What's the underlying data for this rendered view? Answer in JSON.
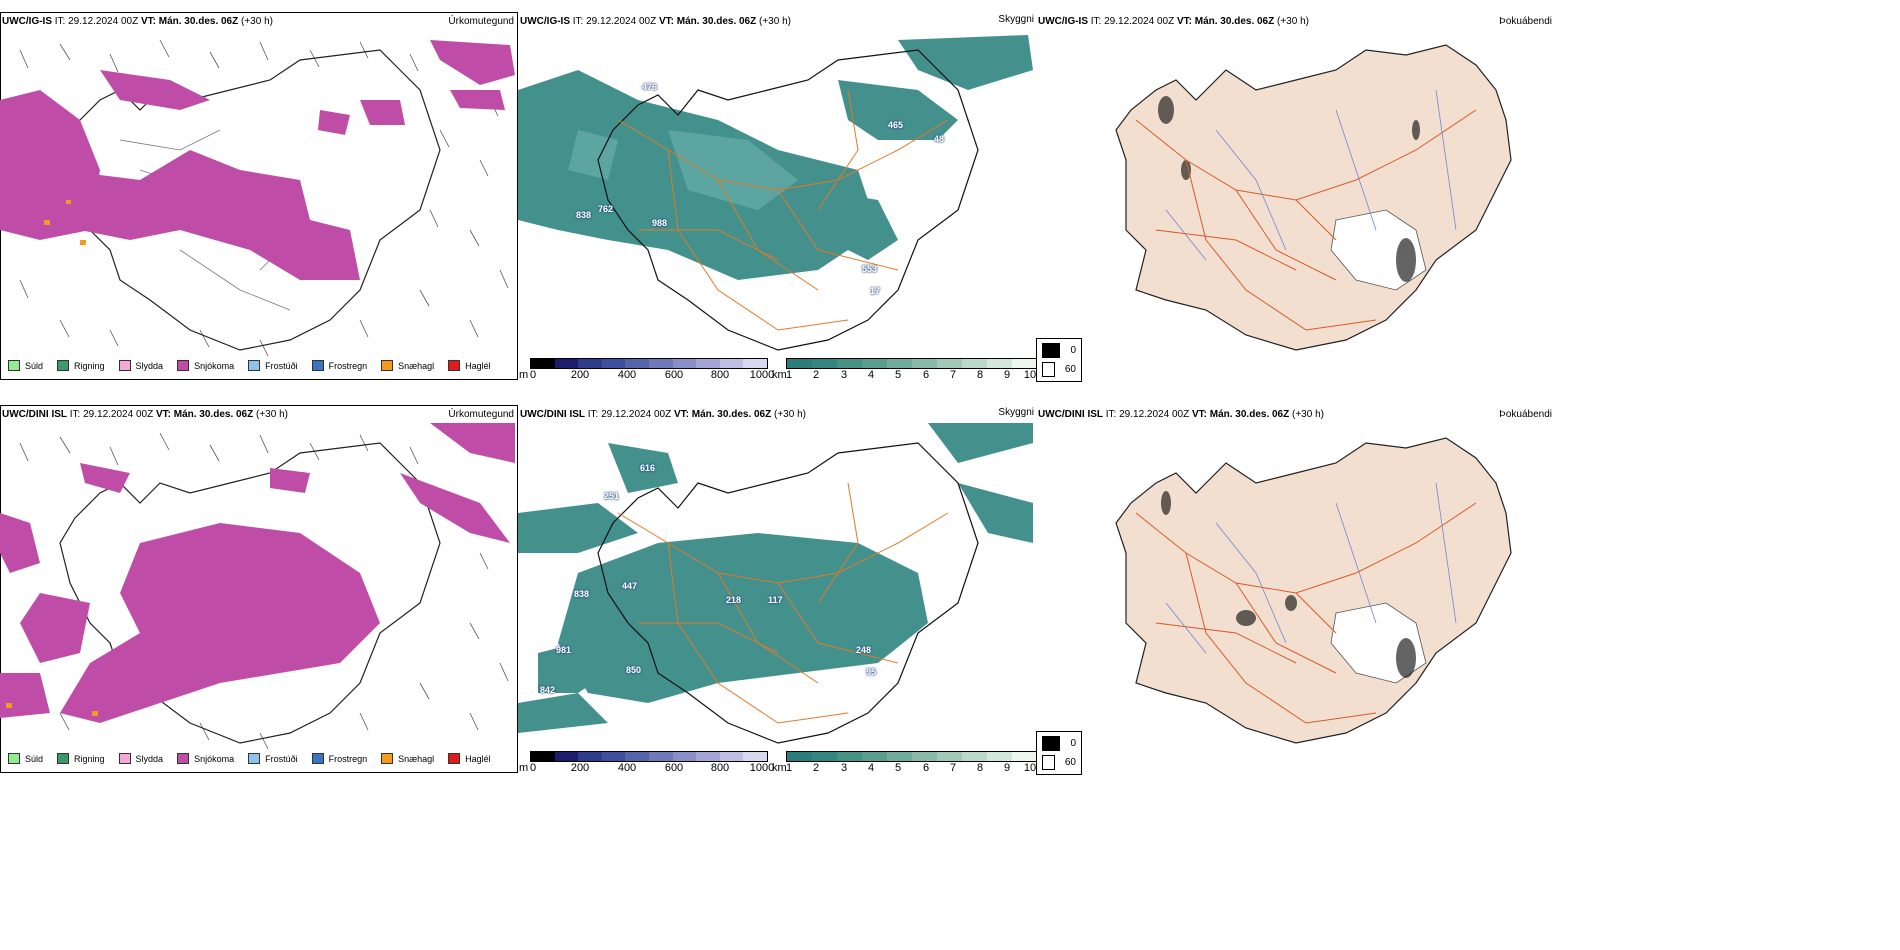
{
  "rows": [
    {
      "model": "UWC/IG-IS",
      "it_label": "IT:",
      "it_value": "29.12.2024 00Z",
      "vt_label": "VT:",
      "vt_value": "Mán. 30.des. 06Z",
      "lead": "(+30 h)",
      "visibility_labels": [
        "476",
        "465",
        "762",
        "838",
        "988",
        "553",
        "48",
        "17"
      ]
    },
    {
      "model": "UWC/DINI ISL",
      "it_label": "IT:",
      "it_value": "29.12.2024 00Z",
      "vt_label": "VT:",
      "vt_value": "Mán. 30.des. 06Z",
      "lead": "(+30 h)",
      "visibility_labels": [
        "616",
        "251",
        "447",
        "838",
        "218",
        "117",
        "981",
        "850",
        "842",
        "248",
        "95"
      ]
    }
  ],
  "panel_titles": {
    "precip_type": "Úrkomutegund",
    "visibility": "Skyggni",
    "fog": "Þokuábendi"
  },
  "precip_legend": [
    {
      "label": "Súld",
      "color": "#90ee90"
    },
    {
      "label": "Rigning",
      "color": "#3c9a6a"
    },
    {
      "label": "Slydda",
      "color": "#f4a9d8"
    },
    {
      "label": "Snjókoma",
      "color": "#bf4da8"
    },
    {
      "label": "Frostúði",
      "color": "#8fc1ee"
    },
    {
      "label": "Frostregn",
      "color": "#3b74c0"
    },
    {
      "label": "Snæhagl",
      "color": "#f29b1f"
    },
    {
      "label": "Haglél",
      "color": "#e31a1c"
    }
  ],
  "ceiling_colorbar": {
    "unit": "m",
    "ticks": [
      "0",
      "200",
      "400",
      "600",
      "800",
      "1000"
    ],
    "colors": [
      "#000000",
      "#1d1d6e",
      "#2e3a8c",
      "#3f4f9e",
      "#5563a8",
      "#6f78b8",
      "#8a8ec8",
      "#a4a6d6",
      "#bebfe3",
      "#d8d8ef"
    ]
  },
  "visibility_colorbar": {
    "unit": "km",
    "ticks": [
      "1",
      "2",
      "3",
      "4",
      "5",
      "6",
      "7",
      "8",
      "9",
      "10"
    ],
    "colors": [
      "#2a7d7a",
      "#33867f",
      "#459285",
      "#5a9e8f",
      "#70ab9b",
      "#88b9a9",
      "#a0c8b9",
      "#bad8cb",
      "#d4e7df",
      "#eef6f2"
    ]
  },
  "fog_legend": [
    {
      "label": "0",
      "color": "#000000"
    },
    {
      "label": "60",
      "color": "#ffffff"
    }
  ],
  "colors": {
    "snow": "#bf4da8",
    "snow_pellets": "#f29b1f",
    "fog_fill": "#f3dfd0",
    "roads": "#e07a2a",
    "teal": "#2f8580",
    "rivers": "#6f86d6"
  }
}
